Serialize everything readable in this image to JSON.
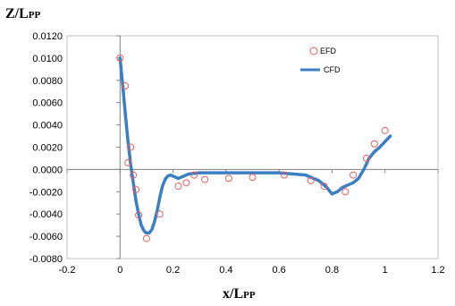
{
  "chart_data": {
    "type": "scatter",
    "xlabel": {
      "main": "x/L",
      "sub": "PP"
    },
    "ylabel": {
      "main": "Z/L",
      "sub": "PP"
    },
    "xlim": [
      -0.2,
      1.2
    ],
    "ylim": [
      -0.008,
      0.012
    ],
    "x_ticks": [
      "-0.2",
      "0",
      "0.2",
      "0.4",
      "0.6",
      "0.8",
      "1",
      "1.2"
    ],
    "y_ticks": [
      "0.0120",
      "0.0100",
      "0.0080",
      "0.0060",
      "0.0040",
      "0.0020",
      "0.0000",
      "-0.0020",
      "-0.0040",
      "-0.0060",
      "-0.0080"
    ],
    "grid": false,
    "legend_position": "top-right",
    "colors": {
      "efd": "#e06060",
      "cfd": "#3a7fc4"
    },
    "series": [
      {
        "name": "EFD",
        "style": "markers",
        "points": [
          [
            0.0,
            0.01
          ],
          [
            0.02,
            0.0075
          ],
          [
            0.03,
            0.0006
          ],
          [
            0.04,
            0.002
          ],
          [
            0.05,
            -0.0005
          ],
          [
            0.06,
            -0.0018
          ],
          [
            0.07,
            -0.0041
          ],
          [
            0.1,
            -0.0062
          ],
          [
            0.15,
            -0.004
          ],
          [
            0.22,
            -0.0015
          ],
          [
            0.25,
            -0.0012
          ],
          [
            0.28,
            -0.0005
          ],
          [
            0.32,
            -0.0009
          ],
          [
            0.41,
            -0.0008
          ],
          [
            0.5,
            -0.0007
          ],
          [
            0.62,
            -0.0005
          ],
          [
            0.72,
            -0.001
          ],
          [
            0.77,
            -0.0015
          ],
          [
            0.85,
            -0.002
          ],
          [
            0.88,
            -0.0005
          ],
          [
            0.93,
            0.001
          ],
          [
            0.96,
            0.0023
          ],
          [
            1.0,
            0.0035
          ]
        ]
      },
      {
        "name": "CFD",
        "style": "line",
        "points": [
          [
            0.0,
            0.01
          ],
          [
            0.01,
            0.0075
          ],
          [
            0.02,
            0.005
          ],
          [
            0.03,
            0.0025
          ],
          [
            0.04,
            0.0005
          ],
          [
            0.05,
            -0.0012
          ],
          [
            0.06,
            -0.0028
          ],
          [
            0.07,
            -0.004
          ],
          [
            0.08,
            -0.005
          ],
          [
            0.09,
            -0.0055
          ],
          [
            0.1,
            -0.0057
          ],
          [
            0.11,
            -0.0057
          ],
          [
            0.12,
            -0.0054
          ],
          [
            0.13,
            -0.0047
          ],
          [
            0.14,
            -0.0037
          ],
          [
            0.15,
            -0.0025
          ],
          [
            0.16,
            -0.0015
          ],
          [
            0.17,
            -0.0009
          ],
          [
            0.18,
            -0.0006
          ],
          [
            0.19,
            -0.0005
          ],
          [
            0.2,
            -0.0006
          ],
          [
            0.22,
            -0.0008
          ],
          [
            0.24,
            -0.0006
          ],
          [
            0.26,
            -0.0004
          ],
          [
            0.3,
            -0.0003
          ],
          [
            0.4,
            -0.0003
          ],
          [
            0.5,
            -0.0003
          ],
          [
            0.6,
            -0.0003
          ],
          [
            0.7,
            -0.0005
          ],
          [
            0.75,
            -0.001
          ],
          [
            0.78,
            -0.0016
          ],
          [
            0.8,
            -0.0022
          ],
          [
            0.82,
            -0.002
          ],
          [
            0.84,
            -0.0016
          ],
          [
            0.86,
            -0.0014
          ],
          [
            0.88,
            -0.0012
          ],
          [
            0.9,
            -0.0008
          ],
          [
            0.92,
            0.0
          ],
          [
            0.94,
            0.001
          ],
          [
            0.96,
            0.0016
          ],
          [
            0.98,
            0.002
          ],
          [
            1.0,
            0.0025
          ],
          [
            1.02,
            0.003
          ]
        ]
      }
    ]
  }
}
